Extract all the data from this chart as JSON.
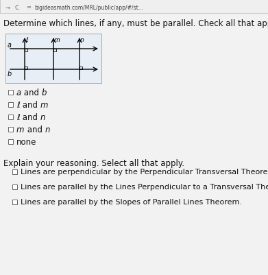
{
  "browser_bar_text": "bigideasmath.com/MRL/public/app/#/st...",
  "title_line1": "Determine which lines, if any, must be parallel. Check all that apply.",
  "checkboxes": [
    {
      "label_parts": [
        {
          "text": "a",
          "italic": true
        },
        {
          "text": " and ",
          "italic": false
        },
        {
          "text": "b",
          "italic": true
        }
      ]
    },
    {
      "label_parts": [
        {
          "text": "ℓ",
          "italic": true
        },
        {
          "text": " and ",
          "italic": false
        },
        {
          "text": "m",
          "italic": true
        }
      ]
    },
    {
      "label_parts": [
        {
          "text": "ℓ",
          "italic": true
        },
        {
          "text": " and ",
          "italic": false
        },
        {
          "text": "n",
          "italic": true
        }
      ]
    },
    {
      "label_parts": [
        {
          "text": "m",
          "italic": true
        },
        {
          "text": " and ",
          "italic": false
        },
        {
          "text": "n",
          "italic": true
        }
      ]
    },
    {
      "label_parts": [
        {
          "text": "none",
          "italic": false
        }
      ]
    }
  ],
  "explain_heading": "Explain your reasoning. Select all that apply.",
  "reasoning_options": [
    "Lines are perpendicular by the Perpendicular Transversal Theorem.",
    "Lines are parallel by the Lines Perpendicular to a Transversal Theorem.",
    "Lines are parallel by the Slopes of Parallel Lines Theorem."
  ],
  "bg_color": "#e2e2e2",
  "content_bg": "#f2f2f2",
  "browser_bg": "#efefef",
  "diagram_bg": "#e8eef5"
}
